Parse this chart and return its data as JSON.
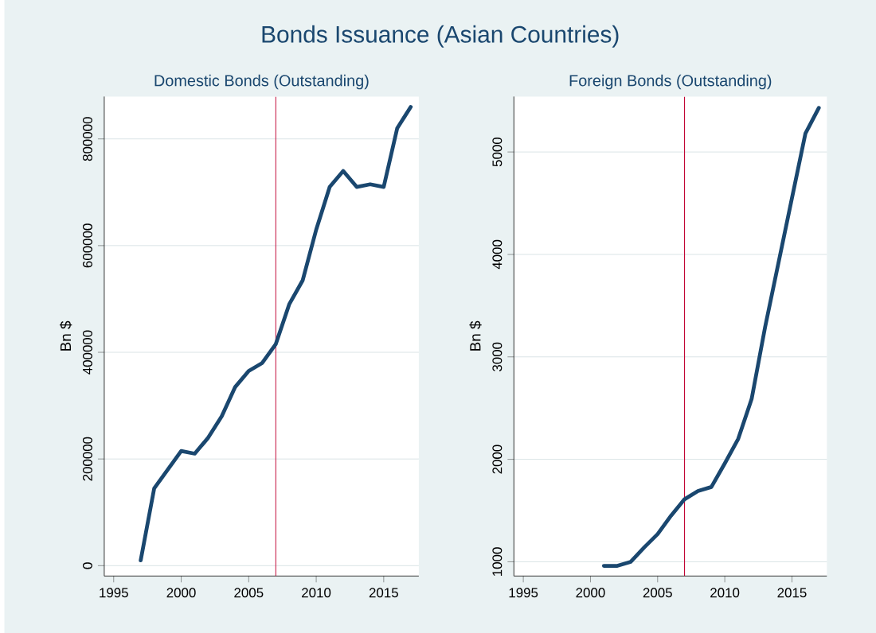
{
  "chart_data": [
    {
      "type": "line",
      "title": "Bonds Issuance (Asian Countries)",
      "subtitle": "Domestic Bonds (Outstanding)",
      "ylabel": "Bn $",
      "x": [
        1997,
        1998,
        1999,
        2000,
        2001,
        2002,
        2003,
        2004,
        2005,
        2006,
        2007,
        2008,
        2009,
        2010,
        2011,
        2012,
        2013,
        2014,
        2015,
        2016,
        2017
      ],
      "series": [
        {
          "color": "#1a476f",
          "values": [
            10000,
            145000,
            180000,
            215000,
            210000,
            240000,
            280000,
            335000,
            365000,
            380000,
            415000,
            490000,
            535000,
            630000,
            710000,
            740000,
            710000,
            715000,
            710000,
            820000,
            860000
          ]
        }
      ],
      "xlim": [
        1994.3,
        2017.6
      ],
      "ylim": [
        -19400,
        879500
      ],
      "xticks": [
        1995,
        2000,
        2005,
        2010,
        2015
      ],
      "yticks": [
        0,
        200000,
        400000,
        600000,
        800000
      ],
      "ref_lines": [
        {
          "axis": "x",
          "value": 2007,
          "color": "#c10534"
        }
      ],
      "grid": "y"
    },
    {
      "type": "line",
      "subtitle": "Foreign Bonds (Outstanding)",
      "ylabel": "Bn $",
      "x": [
        2001,
        2002,
        2003,
        2004,
        2005,
        2006,
        2007,
        2008,
        2009,
        2010,
        2011,
        2012,
        2013,
        2014,
        2015,
        2016,
        2017
      ],
      "series": [
        {
          "color": "#1a476f",
          "values": [
            960,
            960,
            1000,
            1140,
            1270,
            1450,
            1610,
            1690,
            1730,
            1960,
            2200,
            2590,
            3290,
            3920,
            4550,
            5180,
            5430
          ]
        }
      ],
      "xlim": [
        1994.3,
        2017.6
      ],
      "ylim": [
        861,
        5541
      ],
      "xticks": [
        1995,
        2000,
        2005,
        2010,
        2015
      ],
      "yticks": [
        1000,
        2000,
        3000,
        4000,
        5000
      ],
      "ref_lines": [
        {
          "axis": "x",
          "value": 2007,
          "color": "#c10534"
        }
      ],
      "grid": "y"
    }
  ]
}
